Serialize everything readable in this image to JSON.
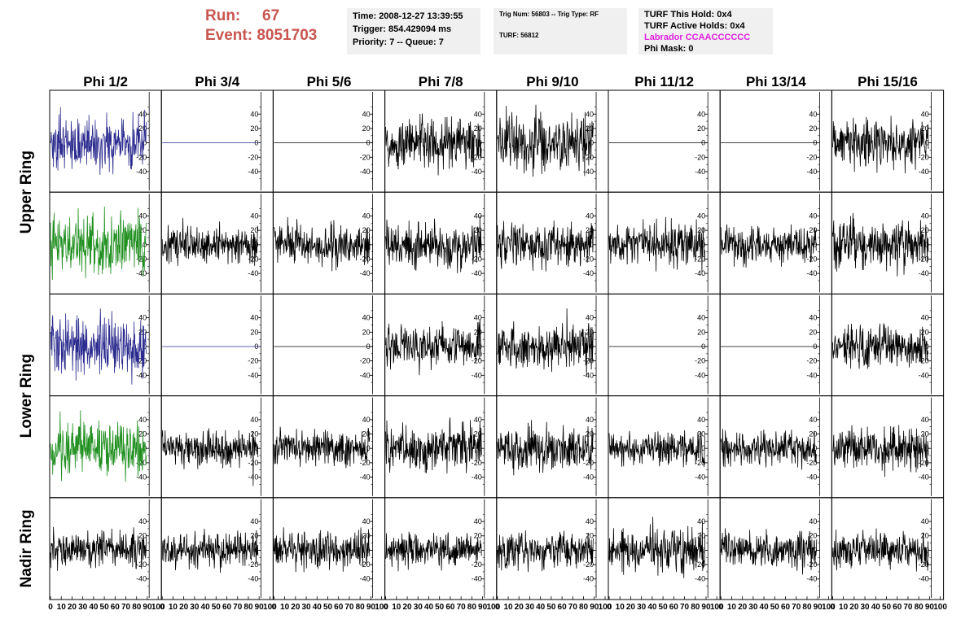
{
  "header": {
    "run_label": "Run:",
    "run_value": "67",
    "event_label": "Event:",
    "event_value": "8051703",
    "time": "Time: 2008-12-27 13:39:55",
    "trigger": "Trigger: 854.429094 ms",
    "priority": "Priority: 7 -- Queue: 7",
    "trig_num": "Trig Num: 56803 -- Trig Type: RF",
    "turf": "TURF: 56812",
    "turf_this_hold": "TURF This Hold: 0x4",
    "turf_active_holds": "TURF Active Holds: 0x4",
    "labrador": "Labrador CCAACCCCCC",
    "phi_mask": "Phi Mask: 0"
  },
  "colors": {
    "header_red": "#c8554f",
    "labrador_magenta": "#e020e0",
    "trace_black": "#000000",
    "trace_blue": "#2b2b8f",
    "trace_green": "#1f8f1f",
    "info_bg": "#f0f0f0"
  },
  "chart_data": {
    "type": "line",
    "column_titles": [
      "Phi 1/2",
      "Phi 3/4",
      "Phi 5/6",
      "Phi 7/8",
      "Phi 9/10",
      "Phi 11/12",
      "Phi 13/14",
      "Phi 15/16"
    ],
    "row_titles": [
      "Upper Ring",
      "Lower Ring",
      "Nadir Ring"
    ],
    "x_ticks": [
      0,
      10,
      20,
      30,
      40,
      50,
      60,
      70,
      80,
      90,
      100
    ],
    "y_ticks": [
      40,
      20,
      0,
      -20,
      -40
    ],
    "xlim": [
      0,
      100
    ],
    "ylim": [
      -55,
      55
    ],
    "panel_rows": [
      {
        "ring": "Upper Ring",
        "traces": [
          {
            "color": "blue",
            "amplitude": 22,
            "flat": false
          },
          {
            "color": "blue",
            "amplitude": 0,
            "flat": true
          },
          {
            "color": "black",
            "amplitude": 0,
            "flat": true
          },
          {
            "color": "black",
            "amplitude": 20,
            "flat": false
          },
          {
            "color": "black",
            "amplitude": 22,
            "flat": false
          },
          {
            "color": "black",
            "amplitude": 0,
            "flat": true
          },
          {
            "color": "black",
            "amplitude": 0,
            "flat": true
          },
          {
            "color": "black",
            "amplitude": 19,
            "flat": false
          }
        ]
      },
      {
        "ring": "Upper Ring",
        "traces": [
          {
            "color": "green",
            "amplitude": 24,
            "flat": false
          },
          {
            "color": "black",
            "amplitude": 15,
            "flat": false
          },
          {
            "color": "black",
            "amplitude": 17,
            "flat": false
          },
          {
            "color": "black",
            "amplitude": 19,
            "flat": false
          },
          {
            "color": "black",
            "amplitude": 18,
            "flat": false
          },
          {
            "color": "black",
            "amplitude": 17,
            "flat": false
          },
          {
            "color": "black",
            "amplitude": 15,
            "flat": false
          },
          {
            "color": "black",
            "amplitude": 20,
            "flat": false
          }
        ]
      },
      {
        "ring": "Lower Ring",
        "traces": [
          {
            "color": "blue",
            "amplitude": 23,
            "flat": false
          },
          {
            "color": "blue",
            "amplitude": 0,
            "flat": true
          },
          {
            "color": "black",
            "amplitude": 0,
            "flat": true
          },
          {
            "color": "black",
            "amplitude": 18,
            "flat": false
          },
          {
            "color": "black",
            "amplitude": 17,
            "flat": false
          },
          {
            "color": "black",
            "amplitude": 0,
            "flat": true
          },
          {
            "color": "black",
            "amplitude": 0,
            "flat": true
          },
          {
            "color": "black",
            "amplitude": 17,
            "flat": false
          }
        ]
      },
      {
        "ring": "Lower Ring",
        "traces": [
          {
            "color": "green",
            "amplitude": 22,
            "flat": false
          },
          {
            "color": "black",
            "amplitude": 14,
            "flat": false
          },
          {
            "color": "black",
            "amplitude": 14,
            "flat": false
          },
          {
            "color": "black",
            "amplitude": 18,
            "flat": false
          },
          {
            "color": "black",
            "amplitude": 17,
            "flat": false
          },
          {
            "color": "black",
            "amplitude": 15,
            "flat": false
          },
          {
            "color": "black",
            "amplitude": 14,
            "flat": false
          },
          {
            "color": "black",
            "amplitude": 18,
            "flat": false
          }
        ]
      },
      {
        "ring": "Nadir Ring",
        "traces": [
          {
            "color": "black",
            "amplitude": 16,
            "flat": false
          },
          {
            "color": "black",
            "amplitude": 14,
            "flat": false
          },
          {
            "color": "black",
            "amplitude": 15,
            "flat": false
          },
          {
            "color": "black",
            "amplitude": 14,
            "flat": false
          },
          {
            "color": "black",
            "amplitude": 15,
            "flat": false
          },
          {
            "color": "black",
            "amplitude": 18,
            "flat": false
          },
          {
            "color": "black",
            "amplitude": 14,
            "flat": false
          },
          {
            "color": "black",
            "amplitude": 15,
            "flat": false
          }
        ]
      }
    ]
  }
}
